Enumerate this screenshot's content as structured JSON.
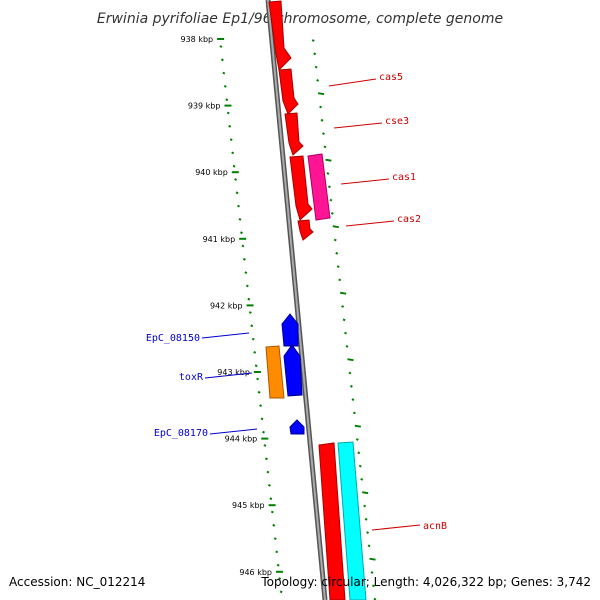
{
  "title": "Erwinia pyrifoliae Ep1/96 chromosome, complete genome",
  "footer": {
    "accession": "Accession: NC_012214",
    "topology": "Topology: circular; Length: 4,026,322 bp; Genes: 3,742"
  },
  "colors": {
    "backbone": "#888888",
    "tick": "#008000",
    "forward_label": "#cc0000",
    "reverse_label": "#0000cc",
    "cas": "#ff0000",
    "cas1_partner": "#ff1493",
    "acnB_partner": "#00ffff",
    "tox": "#0000ff",
    "orange": "#ff8c00"
  },
  "axis": {
    "ticks": [
      "938 kbp",
      "939 kbp",
      "940 kbp",
      "941 kbp",
      "942 kbp",
      "943 kbp",
      "944 kbp",
      "945 kbp",
      "946 kbp"
    ]
  },
  "gene_labels": {
    "cas5": "cas5",
    "cse3": "cse3",
    "cas1": "cas1",
    "cas2": "cas2",
    "acnB": "acnB",
    "EpC_08150": "EpC_08150",
    "toxR": "toxR",
    "EpC_08170": "EpC_08170"
  }
}
